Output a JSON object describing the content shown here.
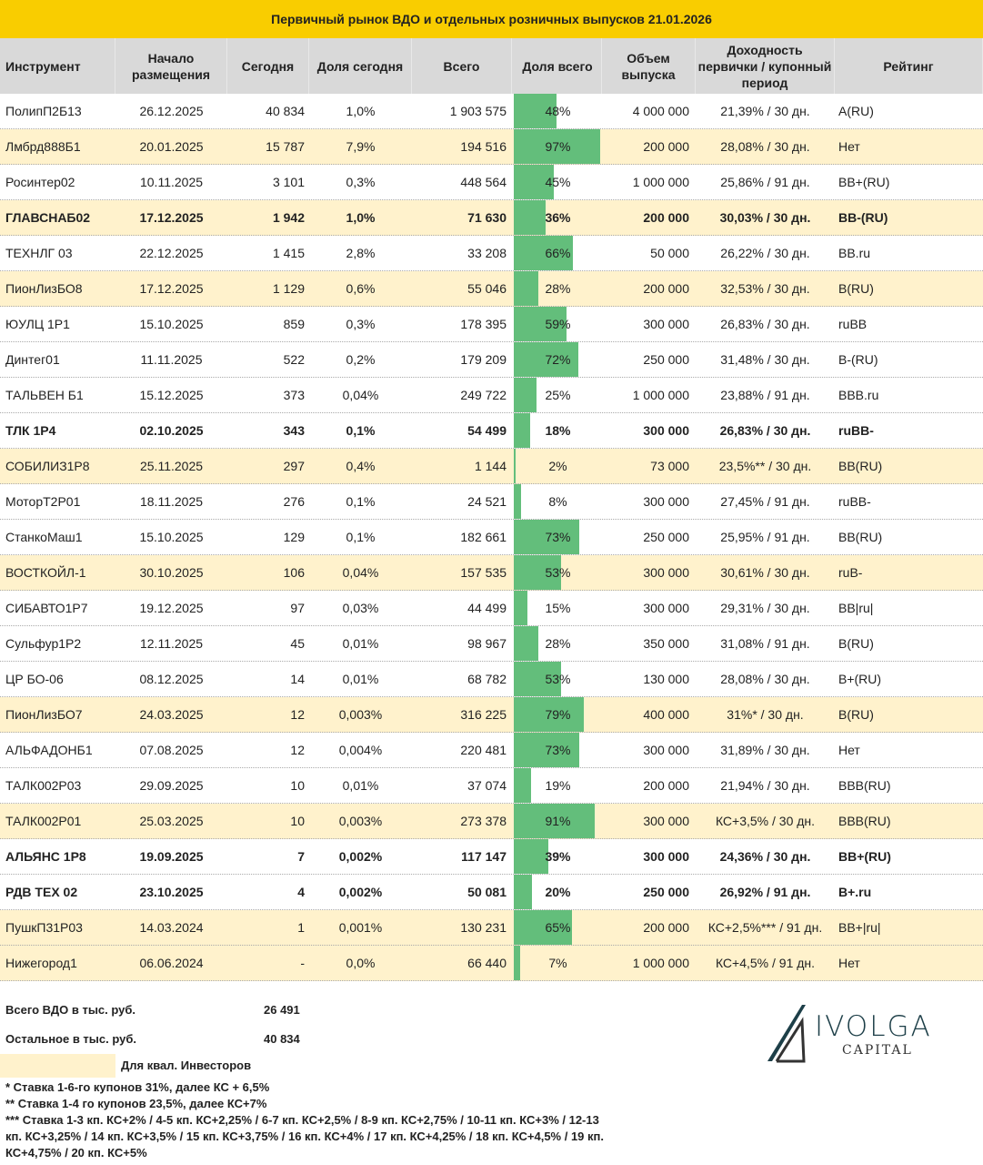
{
  "title": "Первичный рынок ВДО и отдельных розничных выпусков 21.01.2026",
  "columns": [
    "Инструмент",
    "Начало размещения",
    "Сегодня",
    "Доля сегодня",
    "Всего",
    "Доля всего",
    "Объем выпуска",
    "Доходность первички / купонный период",
    "Рейтинг"
  ],
  "colors": {
    "title_bg": "#f9cd00",
    "header_bg": "#d9d9d9",
    "qual_row": "#fff2cc",
    "bar": "#63be7b"
  },
  "rows": [
    {
      "cells": [
        "ПолипП2Б13",
        "26.12.2025",
        "40 834",
        "1,0%",
        "1 903 575",
        "48%",
        "4 000 000",
        "21,39% / 30 дн.",
        "A(RU)"
      ],
      "share": 48,
      "qual": false,
      "bold": false
    },
    {
      "cells": [
        "Лмбрд888Б1",
        "20.01.2025",
        "15 787",
        "7,9%",
        "194 516",
        "97%",
        "200 000",
        "28,08% / 30 дн.",
        "Нет"
      ],
      "share": 97,
      "qual": true,
      "bold": false
    },
    {
      "cells": [
        "Росинтер02",
        "10.11.2025",
        "3 101",
        "0,3%",
        "448 564",
        "45%",
        "1 000 000",
        "25,86% / 91 дн.",
        "BB+(RU)"
      ],
      "share": 45,
      "qual": false,
      "bold": false
    },
    {
      "cells": [
        "ГЛАВСНАБ02",
        "17.12.2025",
        "1 942",
        "1,0%",
        "71 630",
        "36%",
        "200 000",
        "30,03% / 30 дн.",
        "BB-(RU)"
      ],
      "share": 36,
      "qual": true,
      "bold": true
    },
    {
      "cells": [
        "ТЕХНЛГ 03",
        "22.12.2025",
        "1 415",
        "2,8%",
        "33 208",
        "66%",
        "50 000",
        "26,22% / 30 дн.",
        "BB.ru"
      ],
      "share": 66,
      "qual": false,
      "bold": false
    },
    {
      "cells": [
        "ПионЛизБО8",
        "17.12.2025",
        "1 129",
        "0,6%",
        "55 046",
        "28%",
        "200 000",
        "32,53% / 30 дн.",
        "B(RU)"
      ],
      "share": 28,
      "qual": true,
      "bold": false
    },
    {
      "cells": [
        "ЮУЛЦ 1Р1",
        "15.10.2025",
        "859",
        "0,3%",
        "178 395",
        "59%",
        "300 000",
        "26,83% / 30 дн.",
        "ruBB"
      ],
      "share": 59,
      "qual": false,
      "bold": false
    },
    {
      "cells": [
        "Динтег01",
        "11.11.2025",
        "522",
        "0,2%",
        "179 209",
        "72%",
        "250 000",
        "31,48% / 30 дн.",
        "B-(RU)"
      ],
      "share": 72,
      "qual": false,
      "bold": false
    },
    {
      "cells": [
        "ТАЛЬВЕН Б1",
        "15.12.2025",
        "373",
        "0,04%",
        "249 722",
        "25%",
        "1 000 000",
        "23,88% / 91 дн.",
        "BBB.ru"
      ],
      "share": 25,
      "qual": false,
      "bold": false
    },
    {
      "cells": [
        "ТЛК 1Р4",
        "02.10.2025",
        "343",
        "0,1%",
        "54 499",
        "18%",
        "300 000",
        "26,83% / 30 дн.",
        "ruBB-"
      ],
      "share": 18,
      "qual": false,
      "bold": true
    },
    {
      "cells": [
        "СОБИЛИЗ1Р8",
        "25.11.2025",
        "297",
        "0,4%",
        "1 144",
        "2%",
        "73 000",
        "23,5%** / 30 дн.",
        "BB(RU)"
      ],
      "share": 2,
      "qual": true,
      "bold": false
    },
    {
      "cells": [
        "МоторТ2Р01",
        "18.11.2025",
        "276",
        "0,1%",
        "24 521",
        "8%",
        "300 000",
        "27,45% / 91 дн.",
        "ruBB-"
      ],
      "share": 8,
      "qual": false,
      "bold": false
    },
    {
      "cells": [
        "СтанкоМаш1",
        "15.10.2025",
        "129",
        "0,1%",
        "182 661",
        "73%",
        "250 000",
        "25,95% / 91 дн.",
        "BB(RU)"
      ],
      "share": 73,
      "qual": false,
      "bold": false
    },
    {
      "cells": [
        "ВОСТКОЙЛ-1",
        "30.10.2025",
        "106",
        "0,04%",
        "157 535",
        "53%",
        "300 000",
        "30,61% / 30 дн.",
        "ruB-"
      ],
      "share": 53,
      "qual": true,
      "bold": false
    },
    {
      "cells": [
        "СИБАВТО1Р7",
        "19.12.2025",
        "97",
        "0,03%",
        "44 499",
        "15%",
        "300 000",
        "29,31% / 30 дн.",
        "BB|ru|"
      ],
      "share": 15,
      "qual": false,
      "bold": false
    },
    {
      "cells": [
        "Сульфур1Р2",
        "12.11.2025",
        "45",
        "0,01%",
        "98 967",
        "28%",
        "350 000",
        "31,08% / 91 дн.",
        "B(RU)"
      ],
      "share": 28,
      "qual": false,
      "bold": false
    },
    {
      "cells": [
        "ЦР БО-06",
        "08.12.2025",
        "14",
        "0,01%",
        "68 782",
        "53%",
        "130 000",
        "28,08% / 30 дн.",
        "B+(RU)"
      ],
      "share": 53,
      "qual": false,
      "bold": false
    },
    {
      "cells": [
        "ПионЛизБО7",
        "24.03.2025",
        "12",
        "0,003%",
        "316 225",
        "79%",
        "400 000",
        "31%* / 30 дн.",
        "B(RU)"
      ],
      "share": 79,
      "qual": true,
      "bold": false
    },
    {
      "cells": [
        "АЛЬФАДОНБ1",
        "07.08.2025",
        "12",
        "0,004%",
        "220 481",
        "73%",
        "300 000",
        "31,89% / 30 дн.",
        "Нет"
      ],
      "share": 73,
      "qual": false,
      "bold": false
    },
    {
      "cells": [
        "ТАЛК002Р03",
        "29.09.2025",
        "10",
        "0,01%",
        "37 074",
        "19%",
        "200 000",
        "21,94% / 30 дн.",
        "BBB(RU)"
      ],
      "share": 19,
      "qual": false,
      "bold": false
    },
    {
      "cells": [
        "ТАЛК002Р01",
        "25.03.2025",
        "10",
        "0,003%",
        "273 378",
        "91%",
        "300 000",
        "КС+3,5% / 30 дн.",
        "BBB(RU)"
      ],
      "share": 91,
      "qual": true,
      "bold": false
    },
    {
      "cells": [
        "АЛЬЯНС 1Р8",
        "19.09.2025",
        "7",
        "0,002%",
        "117 147",
        "39%",
        "300 000",
        "24,36% / 30 дн.",
        "BB+(RU)"
      ],
      "share": 39,
      "qual": false,
      "bold": true
    },
    {
      "cells": [
        "РДВ ТЕХ 02",
        "23.10.2025",
        "4",
        "0,002%",
        "50 081",
        "20%",
        "250 000",
        "26,92% / 91 дн.",
        "B+.ru"
      ],
      "share": 20,
      "qual": false,
      "bold": true
    },
    {
      "cells": [
        "ПушкП31Р03",
        "14.03.2024",
        "1",
        "0,001%",
        "130 231",
        "65%",
        "200 000",
        "КС+2,5%*** / 91 дн.",
        "BB+|ru|"
      ],
      "share": 65,
      "qual": true,
      "bold": false
    },
    {
      "cells": [
        "Нижегород1",
        "06.06.2024",
        "-",
        "0,0%",
        "66 440",
        "7%",
        "1 000 000",
        "КС+4,5% / 91 дн.",
        "Нет"
      ],
      "share": 7,
      "qual": true,
      "bold": false
    }
  ],
  "summary": {
    "total_label": "Всего ВДО в тыс. руб.",
    "total_value": "26 491",
    "other_label": "Остальное в тыс. руб.",
    "other_value": "40 834",
    "legend_qual": "Для квал. Инвесторов"
  },
  "notes": [
    "* Ставка 1-6-го купонов 31%, далее КС + 6,5%",
    "** Ставка 1-4 го купонов 23,5%, далее КС+7%",
    "*** Ставка 1-3 кп. КС+2% / 4-5 кп. КС+2,25% / 6-7 кп. КС+2,5% / 8-9 кп. КС+2,75% / 10-11 кп. КС+3% / 12-13 кп. КС+3,25% / 14 кп. КС+3,5% / 15 кп. КС+3,75% / 16 кп. КС+4% / 17 кп. КС+4,25% / 18 кп. КС+4,5% / 19 кп. КС+4,75% / 20 кп. КС+5%"
  ],
  "logo": {
    "text": "IVOLGA",
    "sub": "CAPITAL"
  }
}
